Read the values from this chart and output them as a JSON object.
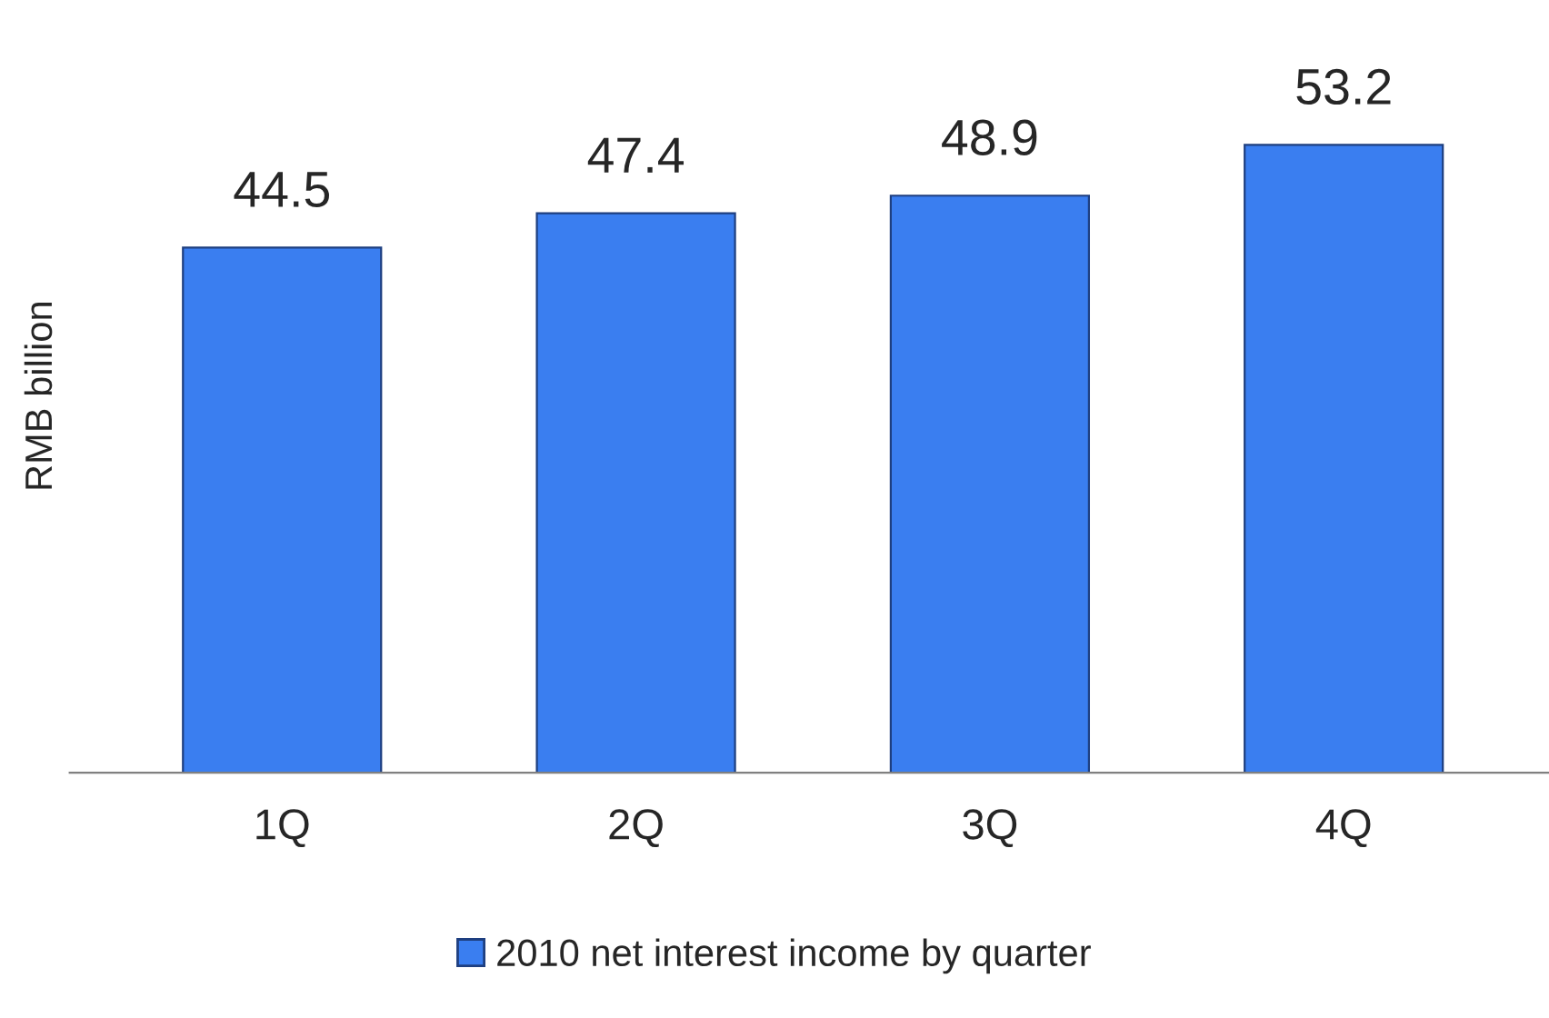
{
  "chart_data": {
    "type": "bar",
    "ylabel": "RMB billion",
    "categories": [
      "1Q",
      "2Q",
      "3Q",
      "4Q"
    ],
    "series": [
      {
        "name": "2010 net interest income by quarter",
        "color": "#3a7ef0",
        "values": [
          44.5,
          47.4,
          48.9,
          53.2
        ]
      }
    ],
    "data_labels": true,
    "grid": false,
    "legend": "bottom"
  }
}
